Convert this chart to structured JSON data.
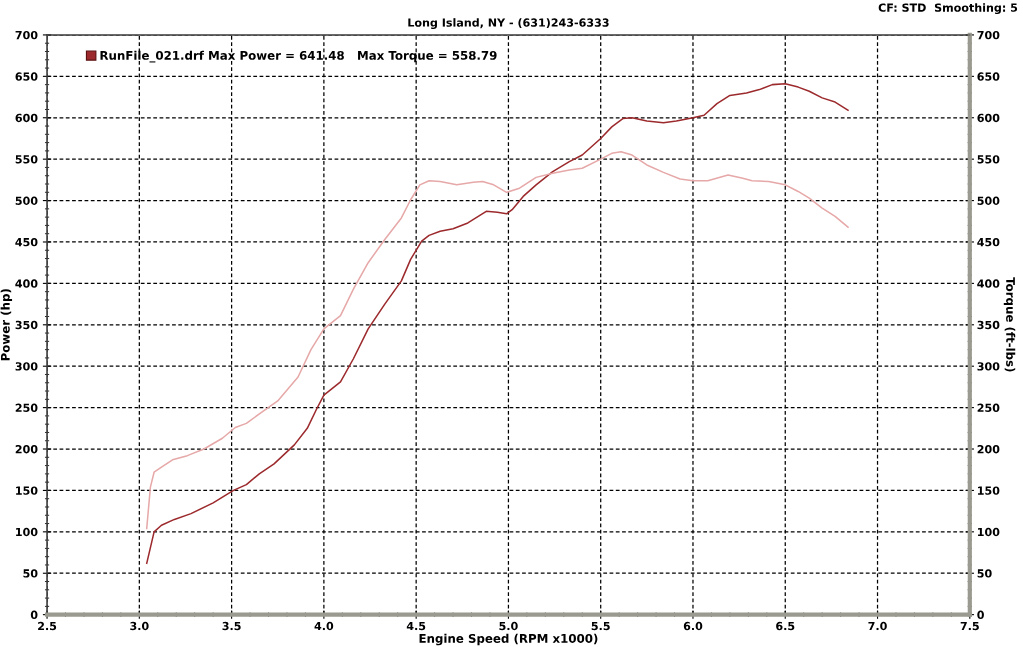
{
  "chart_data": {
    "type": "line",
    "title": "Long Island, NY - (631)243-6333",
    "xlabel": "Engine Speed (RPM x1000)",
    "ylabel": "Power (hp)",
    "y2label": "Torque (ft-lbs)",
    "annotations": [
      "CF: STD  Smoothing: 5"
    ],
    "series": [
      {
        "name": "RunFile_021.drf Max Power = 641.48   Max Torque = 558.79",
        "color": "#9c2a2d",
        "x": [
          3.04,
          3.08,
          3.12,
          3.19,
          3.28,
          3.4,
          3.51,
          3.58,
          3.65,
          3.73,
          3.84,
          3.91,
          3.96,
          4.0,
          4.09,
          4.16,
          4.24,
          4.33,
          4.42,
          4.47,
          4.53,
          4.57,
          4.63,
          4.7,
          4.78,
          4.88,
          4.94,
          4.99,
          5.02,
          5.08,
          5.15,
          5.24,
          5.33,
          5.4,
          5.45,
          5.5,
          5.56,
          5.62,
          5.67,
          5.75,
          5.84,
          5.91,
          6.0,
          6.06,
          6.13,
          6.2,
          6.29,
          6.36,
          6.43,
          6.5,
          6.57,
          6.63,
          6.7,
          6.77,
          6.84
        ],
        "values": [
          62,
          100,
          108,
          115,
          122,
          135,
          150,
          157,
          170,
          182,
          205,
          225,
          248,
          265,
          281,
          309,
          345,
          375,
          403,
          429,
          451,
          458,
          463,
          466,
          473,
          487,
          486,
          484,
          489,
          505,
          519,
          535,
          547,
          555,
          565,
          575,
          589,
          599,
          600,
          596,
          594,
          596,
          600,
          603,
          617,
          627,
          630,
          634,
          640,
          641,
          637,
          632,
          624,
          619,
          609
        ]
      },
      {
        "color": "#e6a8a8",
        "x": [
          3.04,
          3.06,
          3.08,
          3.12,
          3.18,
          3.26,
          3.35,
          3.45,
          3.52,
          3.58,
          3.66,
          3.75,
          3.86,
          3.93,
          4.0,
          4.09,
          4.16,
          4.24,
          4.33,
          4.42,
          4.47,
          4.52,
          4.57,
          4.63,
          4.72,
          4.81,
          4.86,
          4.92,
          4.99,
          5.06,
          5.15,
          5.24,
          5.33,
          5.4,
          5.5,
          5.56,
          5.61,
          5.67,
          5.75,
          5.84,
          5.93,
          6.0,
          6.08,
          6.19,
          6.27,
          6.32,
          6.41,
          6.5,
          6.57,
          6.63,
          6.7,
          6.77,
          6.84
        ],
        "values": [
          104,
          154,
          172,
          178,
          187,
          192,
          200,
          213,
          226,
          231,
          244,
          258,
          287,
          320,
          345,
          361,
          393,
          425,
          453,
          479,
          501,
          519,
          524,
          523,
          519,
          522,
          523,
          519,
          510,
          515,
          528,
          533,
          537,
          539,
          550,
          557,
          559,
          555,
          543,
          534,
          526,
          524,
          524,
          531,
          527,
          524,
          523,
          519,
          511,
          503,
          491,
          481,
          468
        ]
      }
    ],
    "xlim": [
      2.5,
      7.5
    ],
    "xticks": [
      2.5,
      {
        "value": 3,
        "label": "3.0"
      },
      3.5,
      {
        "value": 4,
        "label": "4.0"
      },
      4.5,
      {
        "value": 5,
        "label": "5.0"
      },
      5.5,
      {
        "value": 6,
        "label": "6.0"
      },
      6.5,
      {
        "value": 7,
        "label": "7.0"
      },
      7.5
    ],
    "ylim": [
      0,
      700
    ],
    "yticks": [
      0,
      50,
      100,
      150,
      200,
      250,
      300,
      350,
      400,
      450,
      500,
      550,
      600,
      650,
      700
    ],
    "y2lim": [
      0,
      700
    ],
    "y2ticks": [
      0,
      50,
      100,
      150,
      200,
      250,
      300,
      350,
      400,
      450,
      500,
      550,
      600,
      650,
      700
    ],
    "grid": true,
    "legend": "top left",
    "line_style": "solid",
    "marker": "none"
  }
}
